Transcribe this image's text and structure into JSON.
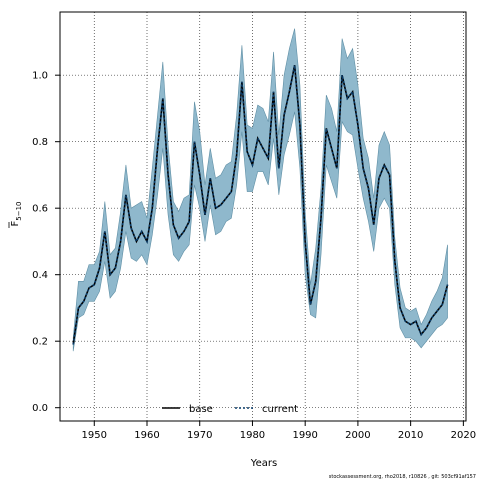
{
  "chart_data": {
    "type": "line",
    "title": "",
    "xlabel": "Years",
    "ylabel": "F̅5−10",
    "ylabel_main": "F",
    "ylabel_sub": "5−10",
    "xlim": [
      1943.5,
      2020.5
    ],
    "ylim": [
      -0.04,
      1.19
    ],
    "xticks": [
      1950,
      1960,
      1970,
      1980,
      1990,
      2000,
      2010,
      2020
    ],
    "yticks": [
      0.0,
      0.2,
      0.4,
      0.6,
      0.8,
      1.0
    ],
    "ytick_labels": [
      "0.0",
      "0.2",
      "0.4",
      "0.6",
      "0.8",
      "1.0"
    ],
    "grid": true,
    "legend_position": "bottom-center",
    "colors": {
      "band": "#8fb8cc",
      "band_edge": "#5f8fa5",
      "base": "#000000",
      "current": "#0a3d6b"
    },
    "x": [
      1946,
      1947,
      1948,
      1949,
      1950,
      1951,
      1952,
      1953,
      1954,
      1955,
      1956,
      1957,
      1958,
      1959,
      1960,
      1961,
      1962,
      1963,
      1964,
      1965,
      1966,
      1967,
      1968,
      1969,
      1970,
      1971,
      1972,
      1973,
      1974,
      1975,
      1976,
      1977,
      1978,
      1979,
      1980,
      1981,
      1982,
      1983,
      1984,
      1985,
      1986,
      1987,
      1988,
      1989,
      1990,
      1991,
      1992,
      1993,
      1994,
      1995,
      1996,
      1997,
      1998,
      1999,
      2000,
      2001,
      2002,
      2003,
      2004,
      2005,
      2006,
      2007,
      2008,
      2009,
      2010,
      2011,
      2012,
      2013,
      2014,
      2015,
      2016,
      2017
    ],
    "series": [
      {
        "name": "base",
        "values": [
          0.19,
          0.3,
          0.32,
          0.36,
          0.37,
          0.42,
          0.53,
          0.4,
          0.42,
          0.5,
          0.64,
          0.54,
          0.5,
          0.53,
          0.5,
          0.6,
          0.78,
          0.93,
          0.7,
          0.55,
          0.51,
          0.53,
          0.56,
          0.8,
          0.7,
          0.58,
          0.69,
          0.6,
          0.61,
          0.63,
          0.65,
          0.76,
          0.98,
          0.77,
          0.73,
          0.81,
          0.78,
          0.75,
          0.95,
          0.72,
          0.88,
          0.95,
          1.03,
          0.85,
          0.5,
          0.31,
          0.38,
          0.57,
          0.84,
          0.78,
          0.72,
          1.0,
          0.93,
          0.95,
          0.85,
          0.72,
          0.66,
          0.55,
          0.69,
          0.73,
          0.7,
          0.44,
          0.3,
          0.26,
          0.25,
          0.26,
          0.22,
          0.24,
          0.27,
          0.29,
          0.31,
          0.37
        ]
      },
      {
        "name": "current",
        "values": [
          0.19,
          0.3,
          0.32,
          0.36,
          0.37,
          0.42,
          0.53,
          0.4,
          0.42,
          0.5,
          0.64,
          0.54,
          0.5,
          0.53,
          0.5,
          0.6,
          0.78,
          0.93,
          0.7,
          0.55,
          0.51,
          0.53,
          0.56,
          0.8,
          0.7,
          0.58,
          0.69,
          0.6,
          0.61,
          0.63,
          0.65,
          0.76,
          0.98,
          0.77,
          0.73,
          0.81,
          0.78,
          0.75,
          0.95,
          0.72,
          0.88,
          0.95,
          1.03,
          0.85,
          0.5,
          0.31,
          0.38,
          0.57,
          0.84,
          0.78,
          0.72,
          1.0,
          0.93,
          0.95,
          0.85,
          0.72,
          0.66,
          0.55,
          0.69,
          0.73,
          0.7,
          0.44,
          0.3,
          0.26,
          0.25,
          0.26,
          0.22,
          0.24,
          0.27,
          0.29,
          0.31,
          0.37
        ]
      }
    ],
    "band": {
      "lower": [
        0.17,
        0.27,
        0.28,
        0.32,
        0.32,
        0.35,
        0.44,
        0.33,
        0.35,
        0.42,
        0.53,
        0.45,
        0.44,
        0.46,
        0.43,
        0.52,
        0.64,
        0.78,
        0.58,
        0.46,
        0.44,
        0.47,
        0.49,
        0.67,
        0.6,
        0.5,
        0.61,
        0.52,
        0.53,
        0.56,
        0.57,
        0.67,
        0.83,
        0.65,
        0.65,
        0.71,
        0.71,
        0.67,
        0.81,
        0.64,
        0.76,
        0.82,
        0.89,
        0.72,
        0.4,
        0.28,
        0.27,
        0.46,
        0.73,
        0.68,
        0.63,
        0.86,
        0.83,
        0.82,
        0.72,
        0.63,
        0.56,
        0.47,
        0.6,
        0.63,
        0.6,
        0.37,
        0.24,
        0.21,
        0.21,
        0.2,
        0.18,
        0.2,
        0.22,
        0.24,
        0.25,
        0.27
      ],
      "upper": [
        0.21,
        0.38,
        0.38,
        0.43,
        0.43,
        0.47,
        0.62,
        0.46,
        0.48,
        0.59,
        0.73,
        0.6,
        0.61,
        0.62,
        0.57,
        0.72,
        0.88,
        1.04,
        0.79,
        0.62,
        0.59,
        0.63,
        0.64,
        0.92,
        0.83,
        0.67,
        0.78,
        0.69,
        0.7,
        0.73,
        0.74,
        0.88,
        1.09,
        0.85,
        0.84,
        0.91,
        0.9,
        0.86,
        1.07,
        0.82,
        1.0,
        1.08,
        1.14,
        0.97,
        0.59,
        0.37,
        0.48,
        0.66,
        0.94,
        0.9,
        0.83,
        1.11,
        1.05,
        1.08,
        0.97,
        0.81,
        0.75,
        0.63,
        0.79,
        0.83,
        0.79,
        0.51,
        0.36,
        0.3,
        0.29,
        0.3,
        0.25,
        0.28,
        0.32,
        0.35,
        0.39,
        0.49
      ]
    }
  },
  "legend": {
    "base_label": "base",
    "current_label": "current"
  },
  "footer": {
    "text": "stockassessment.org, rho2018, r10826 , git: 503cf91af157"
  }
}
